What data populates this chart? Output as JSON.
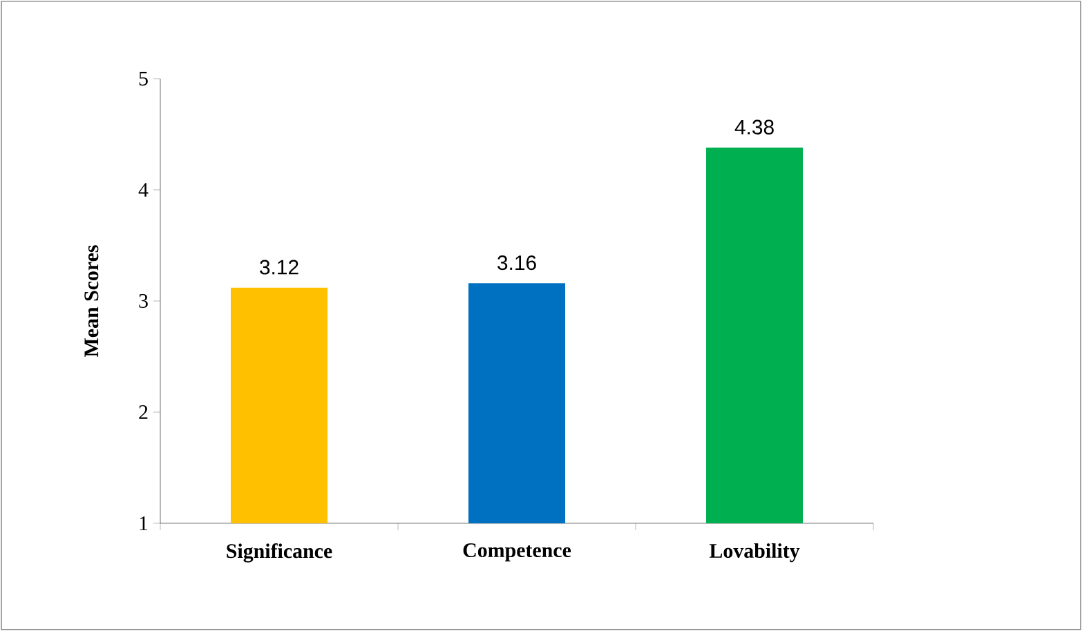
{
  "chart_data": {
    "type": "bar",
    "ylabel": "Mean Scores",
    "categories": [
      "Significance",
      "Competence",
      "Lovability"
    ],
    "values": [
      3.12,
      3.16,
      4.38
    ],
    "colors": [
      "#ffc000",
      "#0070c0",
      "#00b050"
    ],
    "ylim": [
      1,
      5
    ],
    "yticks": [
      1,
      2,
      3,
      4,
      5
    ],
    "data_labels": true,
    "grid": false
  }
}
